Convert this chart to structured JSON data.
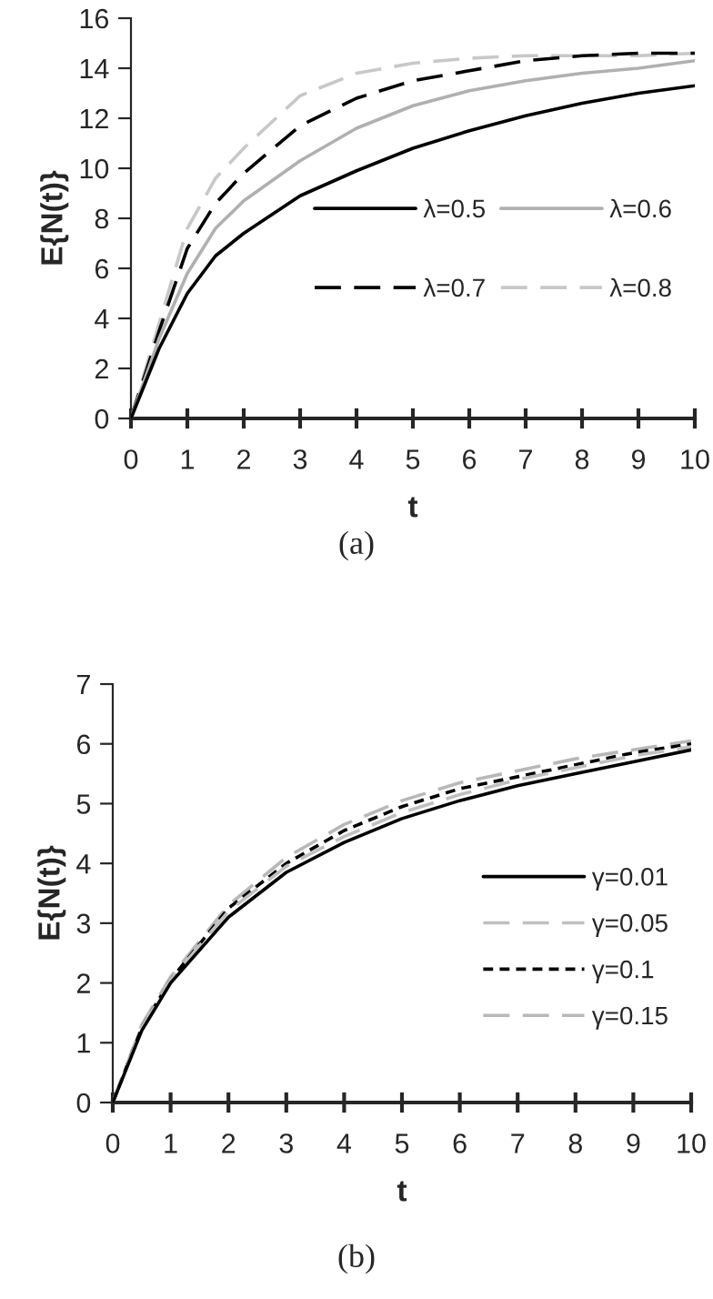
{
  "chart_data": [
    {
      "type": "line",
      "xlabel": "t",
      "ylabel": "E{N(t)}",
      "annotations": [
        "(a)"
      ],
      "x": [
        0,
        0.5,
        1,
        1.5,
        2,
        3,
        4,
        5,
        6,
        7,
        8,
        9,
        10
      ],
      "xlim": [
        0,
        10
      ],
      "xticks": [
        0,
        1,
        2,
        3,
        4,
        5,
        6,
        7,
        8,
        9,
        10
      ],
      "ylim": [
        0,
        16
      ],
      "yticks": [
        0,
        2,
        4,
        6,
        8,
        10,
        12,
        14,
        16
      ],
      "legend": "center right",
      "marker": "none",
      "series": [
        {
          "name": "λ=0.5",
          "color": "#000000",
          "line_style": "solid",
          "values": [
            0,
            2.8,
            5,
            6.5,
            7.4,
            8.9,
            9.9,
            10.8,
            11.5,
            12.1,
            12.6,
            13.0,
            13.3
          ]
        },
        {
          "name": "λ=0.6",
          "color": "#b0b0b0",
          "line_style": "solid",
          "values": [
            0,
            3.2,
            5.8,
            7.6,
            8.7,
            10.3,
            11.6,
            12.5,
            13.1,
            13.5,
            13.8,
            14.0,
            14.3
          ]
        },
        {
          "name": "λ=0.7",
          "color": "#000000",
          "line_style": "dashed",
          "values": [
            0,
            3.5,
            6.8,
            8.6,
            9.8,
            11.7,
            12.8,
            13.5,
            13.9,
            14.3,
            14.5,
            14.6,
            14.6
          ]
        },
        {
          "name": "λ=0.8",
          "color": "#c8c8c8",
          "line_style": "dashed",
          "values": [
            0,
            3.8,
            7.6,
            9.6,
            10.8,
            12.9,
            13.8,
            14.2,
            14.4,
            14.5,
            14.5,
            14.5,
            14.6
          ]
        }
      ]
    },
    {
      "type": "line",
      "xlabel": "t",
      "ylabel": "E{N(t)}",
      "annotations": [
        "(b)"
      ],
      "x": [
        0,
        0.5,
        1,
        2,
        3,
        4,
        5,
        6,
        7,
        8,
        9,
        10
      ],
      "xlim": [
        0,
        10
      ],
      "xticks": [
        0,
        1,
        2,
        3,
        4,
        5,
        6,
        7,
        8,
        9,
        10
      ],
      "ylim": [
        0,
        7
      ],
      "yticks": [
        0,
        1,
        2,
        3,
        4,
        5,
        6,
        7
      ],
      "legend": "bottom right",
      "marker": "none",
      "series": [
        {
          "name": "γ=0.01",
          "color": "#000000",
          "line_style": "solid",
          "values": [
            0,
            1.2,
            2.0,
            3.1,
            3.85,
            4.35,
            4.75,
            5.05,
            5.3,
            5.5,
            5.7,
            5.9
          ]
        },
        {
          "name": "γ=0.05",
          "color": "#c0c0c0",
          "line_style": "dashed",
          "values": [
            0,
            1.25,
            2.05,
            3.2,
            3.95,
            4.45,
            4.85,
            5.15,
            5.4,
            5.6,
            5.8,
            5.95
          ]
        },
        {
          "name": "γ=0.1",
          "color": "#000000",
          "line_style": "dotted",
          "values": [
            0,
            1.25,
            2.05,
            3.25,
            4.0,
            4.55,
            4.95,
            5.25,
            5.45,
            5.65,
            5.85,
            6.0
          ]
        },
        {
          "name": "γ=0.15",
          "color": "#b8b8b8",
          "line_style": "dashed",
          "values": [
            0,
            1.3,
            2.1,
            3.3,
            4.1,
            4.65,
            5.05,
            5.35,
            5.55,
            5.75,
            5.9,
            6.05
          ]
        }
      ]
    }
  ]
}
